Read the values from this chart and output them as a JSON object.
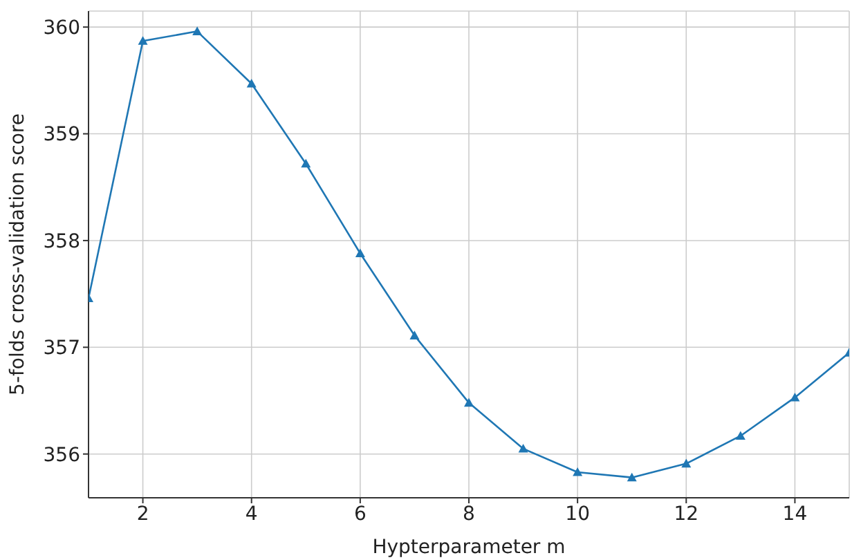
{
  "chart_data": {
    "type": "line",
    "xlabel": "Hypterparameter m",
    "ylabel": "5-folds cross-validation score",
    "x": [
      1,
      2,
      3,
      4,
      5,
      6,
      7,
      8,
      9,
      10,
      11,
      12,
      13,
      14,
      15
    ],
    "series": [
      {
        "color": "#1f77b4",
        "values": [
          357.46,
          359.87,
          359.96,
          359.47,
          358.72,
          357.88,
          357.11,
          356.48,
          356.05,
          355.83,
          355.78,
          355.91,
          356.17,
          356.53,
          356.95
        ]
      }
    ],
    "xlim": [
      1,
      15
    ],
    "xticks": [
      2,
      4,
      6,
      8,
      10,
      12,
      14
    ],
    "ylim": [
      355.59,
      360.15
    ],
    "yticks": [
      356,
      357,
      358,
      359,
      360
    ],
    "grid": true,
    "marker": "triangle",
    "line_style": "solid"
  }
}
